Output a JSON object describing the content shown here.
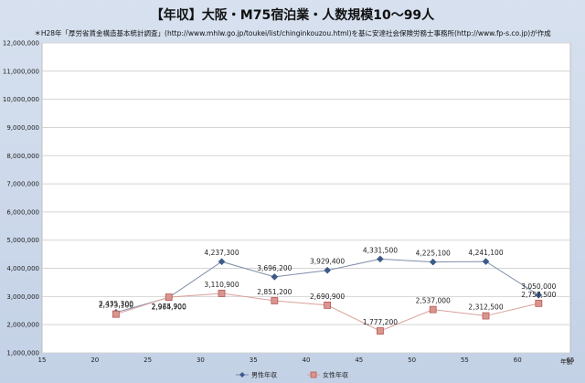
{
  "chart_data": {
    "type": "line",
    "title": "【年収】大阪・M75宿泊業・人数規模10～99人",
    "subtitle": "＊H28年「厚労省賃金構造基本統計調査」(http://www.mhlw.go.jp/toukei/list/chinginkouzou.html)を基に安達社会保険労務士事務所(http://www.fp-s.co.jp)が作成",
    "xlabel": "年齢",
    "ylabel": "",
    "xlim": [
      15,
      65
    ],
    "ylim": [
      1000000,
      12000000
    ],
    "x_ticks": [
      15,
      20,
      25,
      30,
      35,
      40,
      45,
      50,
      55,
      60,
      65
    ],
    "y_ticks": [
      1000000,
      2000000,
      3000000,
      4000000,
      5000000,
      6000000,
      7000000,
      8000000,
      9000000,
      10000000,
      11000000,
      12000000
    ],
    "y_tick_labels": [
      "1,000,000",
      "2,000,000",
      "3,000,000",
      "4,000,000",
      "5,000,000",
      "6,000,000",
      "7,000,000",
      "8,000,000",
      "9,000,000",
      "10,000,000",
      "11,000,000",
      "12,000,000"
    ],
    "x": [
      22,
      27,
      32,
      37,
      42,
      47,
      52,
      57,
      62
    ],
    "grid": true,
    "legend_position": "bottom",
    "series": [
      {
        "name": "男性年収",
        "color": "#3b5b8c",
        "marker": "diamond",
        "values": [
          2435300,
          2964700,
          4237300,
          3696200,
          3929400,
          4331500,
          4225100,
          4241100,
          3050000
        ],
        "labels": [
          "2,435,300",
          "2,964,700",
          "4,237,300",
          "3,696,200",
          "3,929,400",
          "4,331,500",
          "4,225,100",
          "4,241,100",
          "3,050,000"
        ]
      },
      {
        "name": "女性年収",
        "color": "#d9958f",
        "marker": "square",
        "values": [
          2373100,
          2975900,
          3110900,
          2851200,
          2690900,
          1777200,
          2537000,
          2312500,
          2757500
        ],
        "labels": [
          "2,373,100",
          "2,975,900",
          "3,110,900",
          "2,851,200",
          "2,690,900",
          "1,777,200",
          "2,537,000",
          "2,312,500",
          "2,757,500"
        ]
      }
    ]
  }
}
